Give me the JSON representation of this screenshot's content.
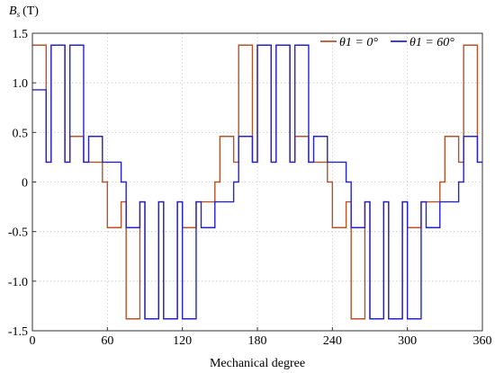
{
  "chart_data": {
    "type": "line",
    "ylabel": {
      "symbol": "B",
      "subscript": "s",
      "unit": "(T)"
    },
    "xlabel": "Mechanical degree",
    "xlim": [
      0,
      360
    ],
    "xticks": [
      0,
      60,
      120,
      180,
      240,
      300,
      360
    ],
    "ylim": [
      -1.5,
      1.5
    ],
    "yticks": [
      -1.5,
      {
        "value": -1.0,
        "label": "-1.0"
      },
      -0.5,
      0,
      0.5,
      {
        "value": 1.0,
        "label": "1.0"
      },
      1.5
    ],
    "grid": true,
    "legend": "upper right",
    "x": [
      0,
      11,
      11,
      15,
      15,
      26,
      26,
      30,
      30,
      41,
      41,
      45,
      45,
      56,
      56,
      60,
      60,
      71,
      71,
      75,
      75,
      86,
      86,
      90,
      90,
      101,
      101,
      105,
      105,
      116,
      116,
      120,
      120,
      131,
      131,
      135,
      135,
      146,
      146,
      150,
      150,
      161,
      161,
      165,
      165,
      176,
      176,
      180,
      180,
      191,
      191,
      195,
      195,
      206,
      206,
      210,
      210,
      221,
      221,
      225,
      225,
      236,
      236,
      240,
      240,
      251,
      251,
      255,
      255,
      266,
      266,
      270,
      270,
      281,
      281,
      285,
      285,
      296,
      296,
      300,
      300,
      311,
      311,
      315,
      315,
      326,
      326,
      330,
      330,
      341,
      341,
      345,
      345,
      356,
      356,
      360
    ],
    "series": [
      {
        "name": "θ1 = 0°",
        "color": "#b5532a",
        "values": [
          1.38,
          1.38,
          0.2,
          0.2,
          1.38,
          1.38,
          0.2,
          0.2,
          0.46,
          0.46,
          0.2,
          0.2,
          0.2,
          0.2,
          0,
          0,
          -0.46,
          -0.46,
          -0.2,
          -0.2,
          -1.38,
          -1.38,
          -0.2,
          -0.2,
          -1.38,
          -1.38,
          -0.2,
          -0.2,
          -1.38,
          -1.38,
          -0.2,
          -0.2,
          -0.46,
          -0.46,
          -0.2,
          -0.2,
          -0.2,
          -0.2,
          0,
          0,
          0.46,
          0.46,
          0.2,
          0.2,
          1.38,
          1.38,
          0.2,
          0.2,
          1.38,
          1.38,
          0.2,
          0.2,
          1.38,
          1.38,
          0.2,
          0.2,
          0.46,
          0.46,
          0.2,
          0.2,
          0.2,
          0.2,
          0,
          0,
          -0.46,
          -0.46,
          -0.2,
          -0.2,
          -1.38,
          -1.38,
          -0.2,
          -0.2,
          -1.38,
          -1.38,
          -0.2,
          -0.2,
          -1.38,
          -1.38,
          -0.2,
          -0.2,
          -0.46,
          -0.46,
          -0.2,
          -0.2,
          -0.2,
          -0.2,
          0,
          0,
          0.46,
          0.46,
          0.2,
          0.2,
          1.38,
          1.38,
          0.2,
          0.2
        ]
      },
      {
        "name": "θ1 = 60°",
        "color": "#2424c8",
        "values": [
          0.93,
          0.93,
          0.2,
          0.2,
          1.38,
          1.38,
          0.2,
          0.2,
          1.38,
          1.38,
          0.2,
          0.2,
          0.46,
          0.46,
          0.2,
          0.2,
          0.2,
          0.2,
          0,
          0,
          -0.46,
          -0.46,
          -0.2,
          -0.2,
          -1.38,
          -1.38,
          -0.2,
          -0.2,
          -1.38,
          -1.38,
          -0.2,
          -0.2,
          -1.38,
          -1.38,
          -0.2,
          -0.2,
          -0.46,
          -0.46,
          -0.2,
          -0.2,
          -0.2,
          -0.2,
          0,
          0,
          0.46,
          0.46,
          0.2,
          0.2,
          1.38,
          1.38,
          0.2,
          0.2,
          1.38,
          1.38,
          0.2,
          0.2,
          1.38,
          1.38,
          0.2,
          0.2,
          0.46,
          0.46,
          0.2,
          0.2,
          0.2,
          0.2,
          0,
          0,
          -0.46,
          -0.46,
          -0.2,
          -0.2,
          -1.38,
          -1.38,
          -0.2,
          -0.2,
          -1.38,
          -1.38,
          -0.2,
          -0.2,
          -1.38,
          -1.38,
          -0.2,
          -0.2,
          -0.46,
          -0.46,
          -0.2,
          -0.2,
          -0.2,
          -0.2,
          0,
          0,
          0.46,
          0.46,
          0.2,
          0.2
        ]
      }
    ]
  }
}
